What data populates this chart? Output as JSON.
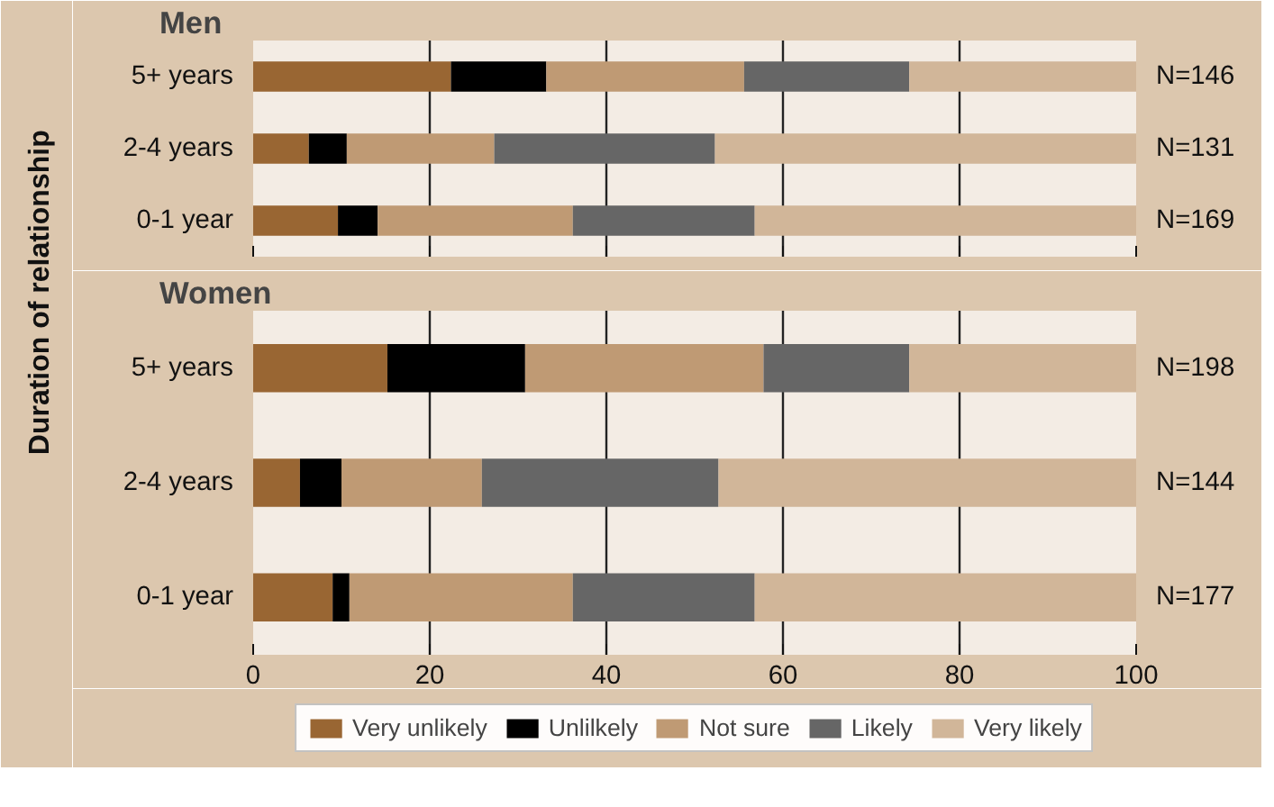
{
  "chart_data": [
    {
      "type": "bar",
      "orientation": "horizontal",
      "stacked": true,
      "title": "Men",
      "ylabel": "Duration of relationship",
      "categories": [
        "5+ years",
        "2-4 years",
        "0-1 year"
      ],
      "xlim": [
        0,
        100
      ],
      "xticks": [
        0,
        20,
        40,
        60,
        80,
        100
      ],
      "grid": "x",
      "tick_labels": "y",
      "legend": false,
      "series": [
        {
          "color": "#996633",
          "values": [
            22.4,
            6.3,
            9.6
          ]
        },
        {
          "color": "#000000",
          "values": [
            10.8,
            4.3,
            4.5
          ]
        },
        {
          "color": "#bf9a74",
          "values": [
            22.4,
            16.7,
            22.1
          ]
        },
        {
          "color": "#666666",
          "values": [
            18.7,
            25.0,
            20.6
          ]
        },
        {
          "color": "#d1b699",
          "values": [
            25.7,
            47.7,
            43.2
          ]
        }
      ],
      "annotations": [
        "N=146",
        "N=131",
        "N=169"
      ]
    },
    {
      "type": "bar",
      "orientation": "horizontal",
      "stacked": true,
      "title": "Women",
      "categories": [
        "5+ years",
        "2-4 years",
        "0-1 year"
      ],
      "xlim": [
        0,
        100
      ],
      "xticks": [
        0,
        20,
        40,
        60,
        80,
        100
      ],
      "grid": "x",
      "legend": "bottom",
      "series": [
        {
          "name": "Very unlikely",
          "color": "#996633",
          "values": [
            15.2,
            5.3,
            9.0
          ]
        },
        {
          "name": "Unlilkely",
          "color": "#000000",
          "values": [
            15.6,
            4.7,
            1.9
          ]
        },
        {
          "name": "Not sure",
          "color": "#bf9a74",
          "values": [
            27.0,
            15.9,
            25.3
          ]
        },
        {
          "name": "Likely",
          "color": "#666666",
          "values": [
            16.5,
            26.8,
            20.6
          ]
        },
        {
          "name": "Very likely",
          "color": "#d1b699",
          "values": [
            25.7,
            47.3,
            43.2
          ]
        }
      ],
      "annotations": [
        "N=198",
        "N=144",
        "N=177"
      ]
    }
  ]
}
